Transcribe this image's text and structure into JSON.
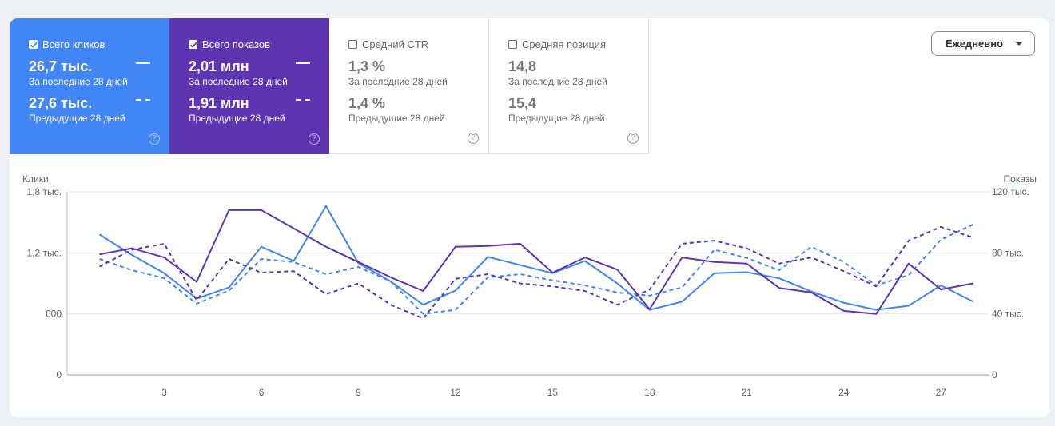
{
  "metrics": [
    {
      "label": "Всего кликов",
      "checked": true,
      "current_value": "26,7 тыс.",
      "current_period": "За последние 28 дней",
      "previous_value": "27,6 тыс.",
      "previous_period": "Предыдущие 28 дней",
      "color": "#4285f4"
    },
    {
      "label": "Всего показов",
      "checked": true,
      "current_value": "2,01 млн",
      "current_period": "За последние 28 дней",
      "previous_value": "1,91 млн",
      "previous_period": "Предыдущие 28 дней",
      "color": "#5e35b1"
    },
    {
      "label": "Средний CTR",
      "checked": false,
      "current_value": "1,3 %",
      "current_period": "За последние 28 дней",
      "previous_value": "1,4 %",
      "previous_period": "Предыдущие 28 дней"
    },
    {
      "label": "Средняя позиция",
      "checked": false,
      "current_value": "14,8",
      "current_period": "За последние 28 дней",
      "previous_value": "15,4",
      "previous_period": "Предыдущие 28 дней"
    }
  ],
  "help_glyph": "?",
  "granularity": {
    "selected": "Ежедневно"
  },
  "chart_data": {
    "type": "line",
    "left_axis_title": "Клики",
    "right_axis_title": "Показы",
    "left_ticks": [
      "0",
      "600",
      "1,2 тыс.",
      "1,8 тыс."
    ],
    "left_tick_values": [
      0,
      600,
      1200,
      1800
    ],
    "right_ticks": [
      "0",
      "40 тыс.",
      "80 тыс.",
      "120 тыс."
    ],
    "right_tick_values": [
      0,
      40000,
      80000,
      120000
    ],
    "left_ylim": [
      0,
      1800
    ],
    "right_ylim": [
      0,
      120000
    ],
    "x_ticks": [
      "3",
      "6",
      "9",
      "12",
      "15",
      "18",
      "21",
      "24",
      "27"
    ],
    "x_tick_values": [
      3,
      6,
      9,
      12,
      15,
      18,
      21,
      24,
      27
    ],
    "x": [
      1,
      2,
      3,
      4,
      5,
      6,
      7,
      8,
      9,
      10,
      11,
      12,
      13,
      14,
      15,
      16,
      17,
      18,
      19,
      20,
      21,
      22,
      23,
      24,
      25,
      26,
      27,
      28
    ],
    "grid": true,
    "series": [
      {
        "axis": "left",
        "style": "solid",
        "color": "#4285f4",
        "values": [
          1380,
          1180,
          1000,
          750,
          860,
          1260,
          1120,
          1660,
          1100,
          920,
          690,
          830,
          1160,
          1080,
          1000,
          1120,
          900,
          640,
          720,
          1000,
          1010,
          950,
          820,
          710,
          640,
          680,
          880,
          720
        ]
      },
      {
        "axis": "left",
        "style": "dashed",
        "color": "#4285f4",
        "values": [
          1140,
          1030,
          950,
          700,
          830,
          1140,
          1110,
          990,
          1060,
          920,
          600,
          640,
          960,
          990,
          930,
          880,
          810,
          780,
          860,
          1230,
          1150,
          1030,
          1260,
          1110,
          880,
          980,
          1330,
          1480
        ]
      },
      {
        "axis": "right",
        "style": "solid",
        "color": "#5e35b1",
        "values": [
          79000,
          83000,
          77000,
          61000,
          108000,
          108000,
          96000,
          84000,
          74000,
          64000,
          55000,
          84000,
          84500,
          86000,
          67000,
          77000,
          69000,
          43000,
          77000,
          74000,
          73000,
          57000,
          54000,
          42000,
          40000,
          73000,
          56000,
          60000
        ]
      },
      {
        "axis": "right",
        "style": "dashed",
        "color": "#5e35b1",
        "values": [
          71000,
          82000,
          86000,
          49000,
          76000,
          67000,
          68000,
          53000,
          60000,
          46000,
          37000,
          63000,
          66000,
          60000,
          58000,
          55000,
          46000,
          56000,
          86000,
          88000,
          83000,
          73000,
          77000,
          68000,
          58000,
          88000,
          97000,
          90000
        ]
      }
    ]
  }
}
